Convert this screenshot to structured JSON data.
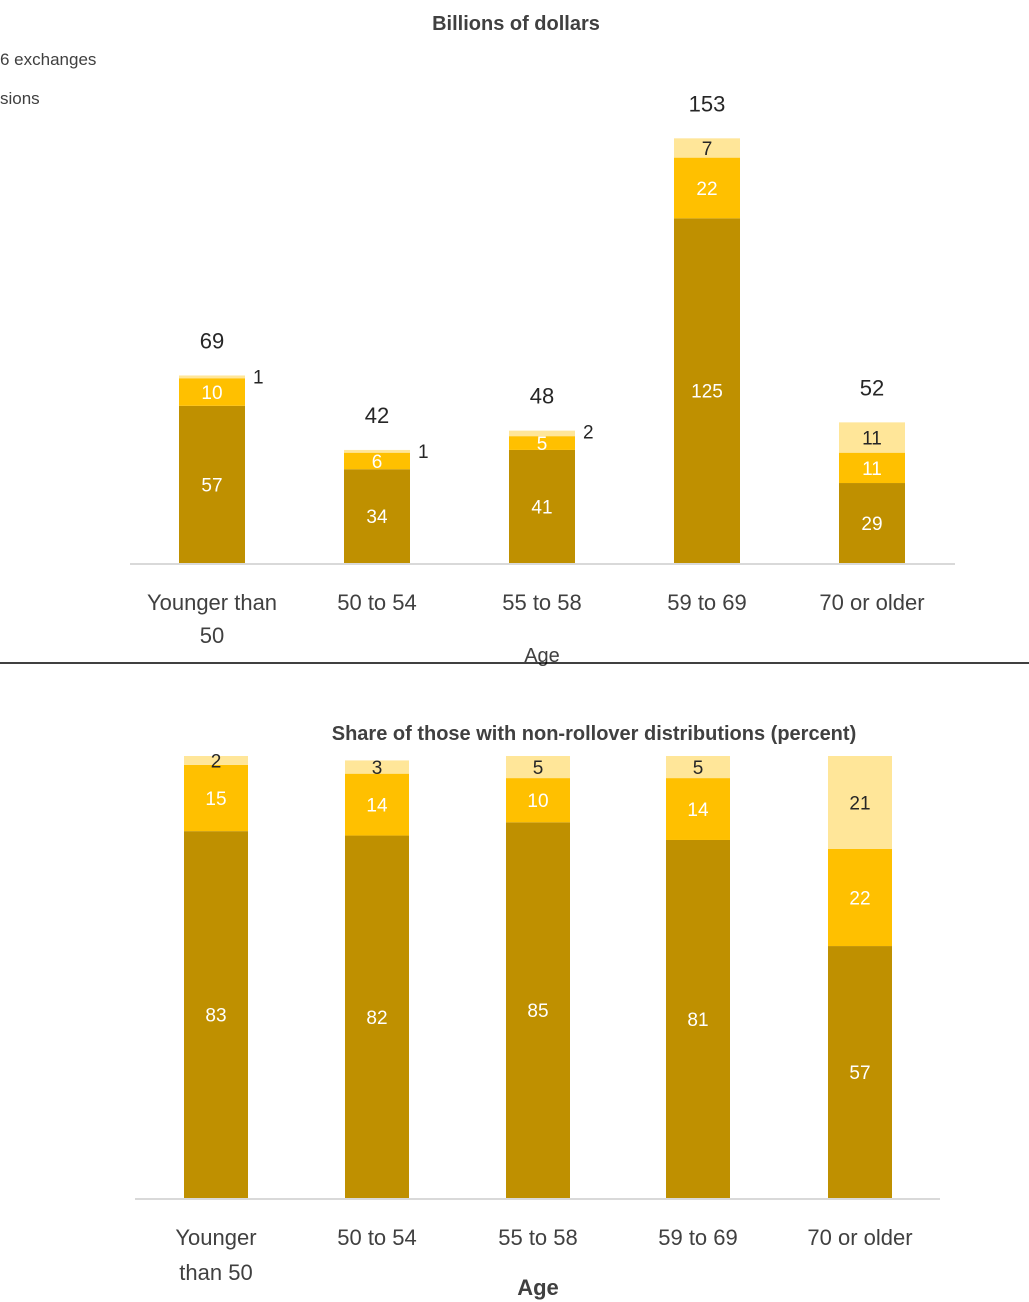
{
  "legend": {
    "items": [
      {
        "text": "6 exchanges"
      },
      {
        "text": "sions"
      }
    ]
  },
  "colors": {
    "series": [
      "#BF9000",
      "#FFC000",
      "#FFE699"
    ],
    "axis": "#D9D9D9",
    "divider": "#000000"
  },
  "chart_data": [
    {
      "type": "bar",
      "stacked": true,
      "title": "Billions of dollars",
      "xlabel": "Age",
      "ylabel": "",
      "categories": [
        "Younger than 50",
        "50 to 54",
        "55 to 58",
        "59 to 69",
        "70 or older"
      ],
      "tick_lines": [
        [
          "Younger than",
          "50"
        ],
        [
          "50 to 54"
        ],
        [
          "55 to 58"
        ],
        [
          "59 to 69"
        ],
        [
          "70 or older"
        ]
      ],
      "series": [
        {
          "values": [
            57,
            34,
            41,
            125,
            29
          ]
        },
        {
          "values": [
            10,
            6,
            5,
            22,
            11
          ]
        },
        {
          "values": [
            1,
            1,
            2,
            7,
            11
          ]
        }
      ],
      "totals": [
        69,
        42,
        48,
        153,
        52
      ],
      "ylim": [
        0,
        165
      ],
      "grid": false
    },
    {
      "type": "bar",
      "stacked": true,
      "title": "Share of those with non-rollover distributions (percent)",
      "xlabel": "Age",
      "ylabel": "",
      "categories": [
        "Younger than 50",
        "50 to 54",
        "55 to 58",
        "59 to 69",
        "70 or older"
      ],
      "tick_lines": [
        [
          "Younger",
          "than 50"
        ],
        [
          "50 to 54"
        ],
        [
          "55 to 58"
        ],
        [
          "59 to 69"
        ],
        [
          "70 or older"
        ]
      ],
      "series": [
        {
          "values": [
            83,
            82,
            85,
            81,
            57
          ]
        },
        {
          "values": [
            15,
            14,
            10,
            14,
            22
          ]
        },
        {
          "values": [
            2,
            3,
            5,
            5,
            21
          ]
        }
      ],
      "ylim": [
        0,
        100
      ],
      "grid": false
    }
  ]
}
